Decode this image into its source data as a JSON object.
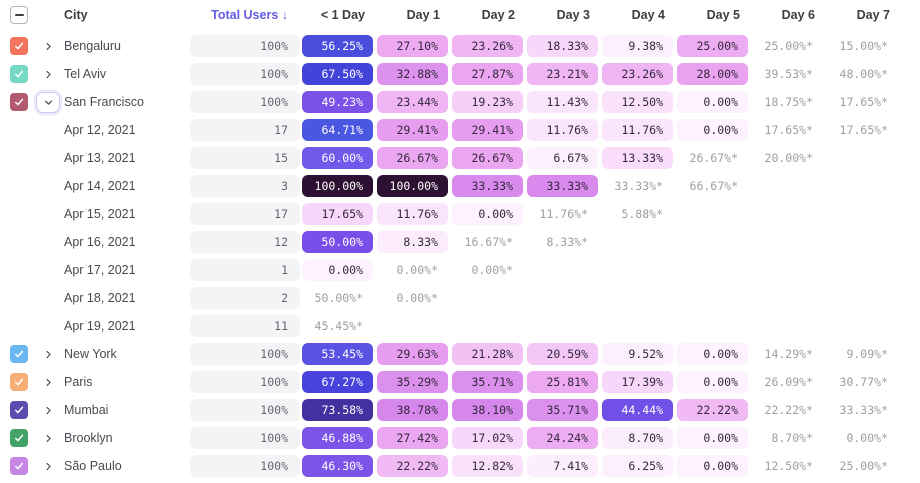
{
  "table": {
    "columns": [
      "City",
      "Total Users ↓",
      "< 1 Day",
      "Day 1",
      "Day 2",
      "Day 3",
      "Day 4",
      "Day 5",
      "Day 6",
      "Day 7"
    ],
    "accent_color": "#655ce5",
    "select_all_state": "indeterminate",
    "estimate_note_suffix": "*",
    "rows": [
      {
        "kind": "city",
        "label": "Bengaluru",
        "checkbox": "#f4745e",
        "expanded": false,
        "total": "100%",
        "cells": [
          {
            "t": "56.25%",
            "bg": "#4b4edc"
          },
          {
            "t": "27.10%",
            "bg": "#edaaf1"
          },
          {
            "t": "23.26%",
            "bg": "#f0b5f3"
          },
          {
            "t": "18.33%",
            "bg": "#f8d8fa"
          },
          {
            "t": "9.38%",
            "bg": "#fdf0fe"
          },
          {
            "t": "25.00%",
            "bg": "#eeadf2"
          },
          {
            "t": "25.00%*",
            "m": true
          },
          {
            "t": "15.00%*",
            "m": true
          }
        ]
      },
      {
        "kind": "city",
        "label": "Tel Aviv",
        "checkbox": "#76d9c6",
        "expanded": false,
        "total": "100%",
        "cells": [
          {
            "t": "67.50%",
            "bg": "#4143d9"
          },
          {
            "t": "32.88%",
            "bg": "#dd93ee"
          },
          {
            "t": "27.87%",
            "bg": "#eba6f1"
          },
          {
            "t": "23.21%",
            "bg": "#f0b5f3"
          },
          {
            "t": "23.26%",
            "bg": "#f0b5f3"
          },
          {
            "t": "28.00%",
            "bg": "#eaa3f0"
          },
          {
            "t": "39.53%*",
            "m": true
          },
          {
            "t": "48.00%*",
            "m": true
          }
        ]
      },
      {
        "kind": "city",
        "label": "San Francisco",
        "checkbox": "#b25a70",
        "expanded": true,
        "total": "100%",
        "cells": [
          {
            "t": "49.23%",
            "bg": "#7b51e8"
          },
          {
            "t": "23.44%",
            "bg": "#f0b5f3"
          },
          {
            "t": "19.23%",
            "bg": "#f6d0f8"
          },
          {
            "t": "11.43%",
            "bg": "#fbe5fc"
          },
          {
            "t": "12.50%",
            "bg": "#fae2fb"
          },
          {
            "t": "0.00%",
            "bg": "#fdf2fe"
          },
          {
            "t": "18.75%*",
            "m": true
          },
          {
            "t": "17.65%*",
            "m": true
          }
        ]
      },
      {
        "kind": "date",
        "label": "Apr 12, 2021",
        "total": "17",
        "cells": [
          {
            "t": "64.71%",
            "bg": "#4a57e3"
          },
          {
            "t": "29.41%",
            "bg": "#e89ef0"
          },
          {
            "t": "29.41%",
            "bg": "#e89ef0"
          },
          {
            "t": "11.76%",
            "bg": "#fbe5fc"
          },
          {
            "t": "11.76%",
            "bg": "#fbe5fc"
          },
          {
            "t": "0.00%",
            "bg": "#fdf2fe"
          },
          {
            "t": "17.65%*",
            "m": true
          },
          {
            "t": "17.65%*",
            "m": true
          }
        ]
      },
      {
        "kind": "date",
        "label": "Apr 13, 2021",
        "total": "15",
        "cells": [
          {
            "t": "60.00%",
            "bg": "#6f5aeb"
          },
          {
            "t": "26.67%",
            "bg": "#eba6f1"
          },
          {
            "t": "26.67%",
            "bg": "#eba6f1"
          },
          {
            "t": "6.67%",
            "bg": "#fdf0fd"
          },
          {
            "t": "13.33%",
            "bg": "#f9ddfb"
          },
          {
            "t": "26.67%*",
            "m": true
          },
          {
            "t": "20.00%*",
            "m": true
          },
          null
        ]
      },
      {
        "kind": "date",
        "label": "Apr 14, 2021",
        "total": "3",
        "cells": [
          {
            "t": "100.00%",
            "bg": "#2d1133"
          },
          {
            "t": "100.00%",
            "bg": "#2d1133"
          },
          {
            "t": "33.33%",
            "bg": "#d98aed"
          },
          {
            "t": "33.33%",
            "bg": "#d98aed"
          },
          {
            "t": "33.33%*",
            "m": true
          },
          {
            "t": "66.67%*",
            "m": true
          },
          null,
          null
        ]
      },
      {
        "kind": "date",
        "label": "Apr 15, 2021",
        "total": "17",
        "cells": [
          {
            "t": "17.65%",
            "bg": "#f8d8fa"
          },
          {
            "t": "11.76%",
            "bg": "#fbe5fc"
          },
          {
            "t": "0.00%",
            "bg": "#fdf2fe"
          },
          {
            "t": "11.76%*",
            "m": true
          },
          {
            "t": "5.88%*",
            "m": true
          },
          null,
          null,
          null
        ]
      },
      {
        "kind": "date",
        "label": "Apr 16, 2021",
        "total": "12",
        "cells": [
          {
            "t": "50.00%",
            "bg": "#7a4fe9"
          },
          {
            "t": "8.33%",
            "bg": "#fcecfd"
          },
          {
            "t": "16.67%*",
            "m": true
          },
          {
            "t": "8.33%*",
            "m": true
          },
          null,
          null,
          null,
          null
        ]
      },
      {
        "kind": "date",
        "label": "Apr 17, 2021",
        "total": "1",
        "cells": [
          {
            "t": "0.00%",
            "bg": "#fdf2fe"
          },
          {
            "t": "0.00%*",
            "m": true
          },
          {
            "t": "0.00%*",
            "m": true
          },
          null,
          null,
          null,
          null,
          null
        ]
      },
      {
        "kind": "date",
        "label": "Apr 18, 2021",
        "total": "2",
        "cells": [
          {
            "t": "50.00%*",
            "m": true
          },
          {
            "t": "0.00%*",
            "m": true
          },
          null,
          null,
          null,
          null,
          null,
          null
        ]
      },
      {
        "kind": "date",
        "label": "Apr 19, 2021",
        "total": "11",
        "cells": [
          {
            "t": "45.45%*",
            "m": true
          },
          null,
          null,
          null,
          null,
          null,
          null,
          null
        ]
      },
      {
        "kind": "city",
        "label": "New York",
        "checkbox": "#69b8f1",
        "expanded": false,
        "total": "100%",
        "cells": [
          {
            "t": "53.45%",
            "bg": "#5a52e3"
          },
          {
            "t": "29.63%",
            "bg": "#e89ef0"
          },
          {
            "t": "21.28%",
            "bg": "#f3c2f5"
          },
          {
            "t": "20.59%",
            "bg": "#f4c8f6"
          },
          {
            "t": "9.52%",
            "bg": "#fdf0fe"
          },
          {
            "t": "0.00%",
            "bg": "#fdf2fe"
          },
          {
            "t": "14.29%*",
            "m": true
          },
          {
            "t": "9.09%*",
            "m": true
          }
        ]
      },
      {
        "kind": "city",
        "label": "Paris",
        "checkbox": "#f7ad76",
        "expanded": false,
        "total": "100%",
        "cells": [
          {
            "t": "67.27%",
            "bg": "#4743dc"
          },
          {
            "t": "35.29%",
            "bg": "#db90ee"
          },
          {
            "t": "35.71%",
            "bg": "#db90ee"
          },
          {
            "t": "25.81%",
            "bg": "#edaaf1"
          },
          {
            "t": "17.39%",
            "bg": "#f8d8fa"
          },
          {
            "t": "0.00%",
            "bg": "#fdf2fe"
          },
          {
            "t": "26.09%*",
            "m": true
          },
          {
            "t": "30.77%*",
            "m": true
          }
        ]
      },
      {
        "kind": "city",
        "label": "Mumbai",
        "checkbox": "#5c4cad",
        "expanded": false,
        "total": "100%",
        "cells": [
          {
            "t": "73.58%",
            "bg": "#44309f"
          },
          {
            "t": "38.78%",
            "bg": "#d687ec"
          },
          {
            "t": "38.10%",
            "bg": "#d687ec"
          },
          {
            "t": "35.71%",
            "bg": "#db90ee"
          },
          {
            "t": "44.44%",
            "bg": "#7050e6"
          },
          {
            "t": "22.22%",
            "bg": "#f2baf4"
          },
          {
            "t": "22.22%*",
            "m": true
          },
          {
            "t": "33.33%*",
            "m": true
          }
        ]
      },
      {
        "kind": "city",
        "label": "Brooklyn",
        "checkbox": "#42a368",
        "expanded": false,
        "total": "100%",
        "cells": [
          {
            "t": "46.88%",
            "bg": "#7c54e8"
          },
          {
            "t": "27.42%",
            "bg": "#eba6f1"
          },
          {
            "t": "17.02%",
            "bg": "#f8d8fa"
          },
          {
            "t": "24.24%",
            "bg": "#eeadf2"
          },
          {
            "t": "8.70%",
            "bg": "#fcedfd"
          },
          {
            "t": "0.00%",
            "bg": "#fdf2fe"
          },
          {
            "t": "8.70%*",
            "m": true
          },
          {
            "t": "0.00%*",
            "m": true
          }
        ]
      },
      {
        "kind": "city",
        "label": "São Paulo",
        "checkbox": "#c687e4",
        "expanded": false,
        "total": "100%",
        "cells": [
          {
            "t": "46.30%",
            "bg": "#7c54e8"
          },
          {
            "t": "22.22%",
            "bg": "#f2baf4"
          },
          {
            "t": "12.82%",
            "bg": "#fae1fb"
          },
          {
            "t": "7.41%",
            "bg": "#fceefd"
          },
          {
            "t": "6.25%",
            "bg": "#fdf0fd"
          },
          {
            "t": "0.00%",
            "bg": "#fdf2fe"
          },
          {
            "t": "12.50%*",
            "m": true
          },
          {
            "t": "25.00%*",
            "m": true
          }
        ]
      }
    ]
  }
}
